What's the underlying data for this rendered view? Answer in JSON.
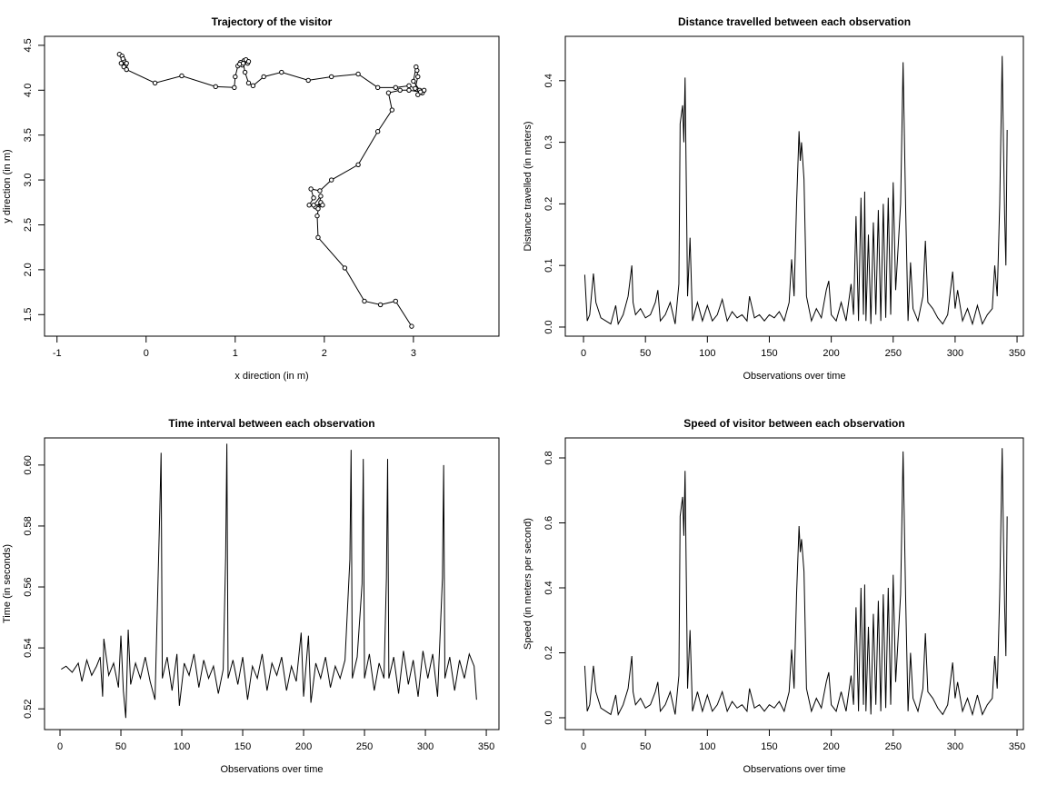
{
  "chart_data": [
    {
      "type": "line",
      "markers": true,
      "title": "Trajectory of the visitor",
      "xlabel": "x direction (in m)",
      "ylabel": "y direction (in m)",
      "color": "#000000",
      "x": [
        -0.3,
        -0.27,
        -0.25,
        -0.28,
        -0.23,
        -0.26,
        -0.22,
        -0.25,
        -0.22,
        0.1,
        0.4,
        0.78,
        0.99,
        1.0,
        1.03,
        1.06,
        1.1,
        1.14,
        1.08,
        1.12,
        1.05,
        1.15,
        1.09,
        1.11,
        1.15,
        1.2,
        1.32,
        1.52,
        1.82,
        2.08,
        2.38,
        2.6,
        2.8,
        2.95,
        3.02,
        3.05,
        3.04,
        3.03,
        3.0,
        3.07,
        3.1,
        3.05,
        3.12,
        3.08,
        2.95,
        2.85,
        2.72,
        2.76,
        2.6,
        2.38,
        2.08,
        1.95,
        1.85,
        1.88,
        1.83,
        1.9,
        1.96,
        1.93,
        1.98,
        1.88,
        1.96,
        1.92,
        1.93,
        2.23,
        2.45,
        2.63,
        2.8,
        2.98
      ],
      "values": [
        4.4,
        4.38,
        4.33,
        4.3,
        4.28,
        4.35,
        4.3,
        4.26,
        4.23,
        4.08,
        4.16,
        4.04,
        4.03,
        4.15,
        4.27,
        4.31,
        4.33,
        4.3,
        4.28,
        4.34,
        4.29,
        4.32,
        4.3,
        4.2,
        4.08,
        4.05,
        4.15,
        4.2,
        4.11,
        4.15,
        4.18,
        4.03,
        4.03,
        4.05,
        4.02,
        4.15,
        4.22,
        4.26,
        4.1,
        4.0,
        3.97,
        3.95,
        4.0,
        3.98,
        4.0,
        4.0,
        3.97,
        3.78,
        3.54,
        3.17,
        3.0,
        2.88,
        2.9,
        2.8,
        2.72,
        2.7,
        2.75,
        2.68,
        2.72,
        2.72,
        2.82,
        2.6,
        2.36,
        2.02,
        1.65,
        1.61,
        1.65,
        1.37
      ],
      "xlim": [
        -1.14,
        3.96
      ],
      "xticks": [
        -1,
        0,
        1,
        2,
        3
      ],
      "ylim": [
        1.26,
        4.6
      ],
      "yticks": [
        1.5,
        {
          "value": 2,
          "label": "2.0"
        },
        2.5,
        {
          "value": 3,
          "label": "3.0"
        },
        3.5,
        {
          "value": 4,
          "label": "4.0"
        },
        4.5
      ]
    },
    {
      "type": "line",
      "title": "Distance travelled between each observation",
      "xlabel": "Observations over time",
      "ylabel": "Distance travelled (in meters)",
      "color": "#000000",
      "x": [
        1,
        3,
        5,
        8,
        10,
        14,
        18,
        22,
        26,
        28,
        32,
        36,
        39,
        40,
        42,
        46,
        50,
        54,
        58,
        60,
        62,
        66,
        70,
        74,
        77,
        78,
        80,
        81,
        82,
        84,
        86,
        88,
        92,
        96,
        100,
        104,
        108,
        112,
        116,
        120,
        124,
        128,
        132,
        134,
        138,
        142,
        146,
        150,
        154,
        158,
        162,
        166,
        168,
        170,
        172,
        174,
        175,
        176,
        178,
        180,
        184,
        188,
        192,
        196,
        198,
        200,
        204,
        208,
        212,
        216,
        218,
        220,
        222,
        224,
        226,
        227,
        228,
        230,
        232,
        234,
        236,
        238,
        240,
        242,
        244,
        246,
        248,
        250,
        252,
        256,
        258,
        260,
        262,
        264,
        266,
        270,
        274,
        276,
        278,
        282,
        286,
        290,
        294,
        298,
        300,
        302,
        306,
        310,
        314,
        318,
        322,
        326,
        330,
        332,
        334,
        336,
        338,
        339,
        340,
        341,
        342
      ],
      "values": [
        0.085,
        0.01,
        0.02,
        0.087,
        0.04,
        0.015,
        0.01,
        0.005,
        0.035,
        0.005,
        0.02,
        0.05,
        0.1,
        0.04,
        0.02,
        0.03,
        0.015,
        0.02,
        0.04,
        0.06,
        0.01,
        0.02,
        0.04,
        0.005,
        0.07,
        0.33,
        0.36,
        0.3,
        0.405,
        0.05,
        0.145,
        0.01,
        0.04,
        0.01,
        0.035,
        0.01,
        0.02,
        0.045,
        0.01,
        0.025,
        0.015,
        0.02,
        0.01,
        0.05,
        0.015,
        0.02,
        0.01,
        0.02,
        0.015,
        0.025,
        0.01,
        0.04,
        0.11,
        0.05,
        0.2,
        0.318,
        0.27,
        0.3,
        0.24,
        0.05,
        0.01,
        0.03,
        0.015,
        0.06,
        0.075,
        0.02,
        0.01,
        0.04,
        0.01,
        0.07,
        0.02,
        0.18,
        0.01,
        0.21,
        0.02,
        0.22,
        0.01,
        0.15,
        0.005,
        0.17,
        0.02,
        0.19,
        0.01,
        0.2,
        0.015,
        0.21,
        0.02,
        0.235,
        0.06,
        0.2,
        0.43,
        0.2,
        0.01,
        0.105,
        0.03,
        0.01,
        0.05,
        0.14,
        0.04,
        0.03,
        0.015,
        0.005,
        0.02,
        0.09,
        0.03,
        0.06,
        0.01,
        0.03,
        0.005,
        0.035,
        0.005,
        0.02,
        0.03,
        0.1,
        0.05,
        0.2,
        0.44,
        0.3,
        0.18,
        0.1,
        0.32
      ],
      "xlim": [
        -14.7,
        355.1
      ],
      "xticks": [
        0,
        50,
        100,
        150,
        200,
        250,
        300,
        350
      ],
      "ylim": [
        -0.0148,
        0.472
      ],
      "yticks": [
        {
          "value": 0,
          "label": "0.0"
        },
        0.1,
        0.2,
        0.3,
        0.4
      ]
    },
    {
      "type": "line",
      "title": "Time interval between each observation",
      "xlabel": "Observations over time",
      "ylabel": "Time (in seconds)",
      "color": "#000000",
      "x": [
        1,
        5,
        10,
        15,
        18,
        22,
        26,
        30,
        33,
        35,
        36,
        40,
        44,
        48,
        50,
        52,
        54,
        56,
        58,
        62,
        66,
        70,
        74,
        78,
        82,
        83,
        84,
        88,
        92,
        96,
        98,
        102,
        106,
        110,
        114,
        118,
        122,
        126,
        130,
        134,
        136,
        137,
        138,
        142,
        146,
        150,
        154,
        158,
        162,
        166,
        170,
        174,
        178,
        182,
        186,
        190,
        194,
        198,
        200,
        204,
        206,
        210,
        214,
        218,
        222,
        226,
        230,
        234,
        238,
        239,
        240,
        244,
        248,
        249,
        250,
        254,
        258,
        262,
        266,
        268,
        269,
        270,
        274,
        278,
        282,
        286,
        290,
        294,
        298,
        302,
        306,
        310,
        314,
        315,
        316,
        320,
        324,
        328,
        332,
        336,
        340,
        342
      ],
      "values": [
        0.533,
        0.534,
        0.532,
        0.535,
        0.529,
        0.536,
        0.531,
        0.534,
        0.537,
        0.524,
        0.543,
        0.531,
        0.535,
        0.527,
        0.544,
        0.526,
        0.517,
        0.546,
        0.528,
        0.535,
        0.53,
        0.537,
        0.529,
        0.523,
        0.586,
        0.604,
        0.53,
        0.537,
        0.526,
        0.538,
        0.521,
        0.535,
        0.531,
        0.538,
        0.527,
        0.536,
        0.53,
        0.534,
        0.525,
        0.533,
        0.57,
        0.607,
        0.53,
        0.536,
        0.528,
        0.537,
        0.523,
        0.534,
        0.53,
        0.538,
        0.526,
        0.535,
        0.531,
        0.537,
        0.526,
        0.534,
        0.529,
        0.545,
        0.524,
        0.544,
        0.522,
        0.535,
        0.53,
        0.537,
        0.527,
        0.534,
        0.53,
        0.536,
        0.569,
        0.605,
        0.53,
        0.537,
        0.561,
        0.602,
        0.53,
        0.538,
        0.526,
        0.535,
        0.53,
        0.563,
        0.602,
        0.53,
        0.537,
        0.525,
        0.539,
        0.528,
        0.536,
        0.524,
        0.539,
        0.53,
        0.538,
        0.524,
        0.563,
        0.6,
        0.53,
        0.537,
        0.526,
        0.536,
        0.53,
        0.538,
        0.534,
        0.523
      ],
      "xlim": [
        -12.7,
        360.4
      ],
      "xticks": [
        0,
        50,
        100,
        150,
        200,
        250,
        300,
        350
      ],
      "ylim": [
        0.5132,
        0.6089
      ],
      "yticks": [
        0.52,
        0.54,
        0.56,
        0.58,
        {
          "value": 0.6,
          "label": "0.60"
        }
      ]
    },
    {
      "type": "line",
      "title": "Speed of visitor between each observation",
      "xlabel": "Observations over time",
      "ylabel": "Speed (in meters per second)",
      "color": "#000000",
      "x": [
        1,
        3,
        5,
        8,
        10,
        14,
        18,
        22,
        26,
        28,
        32,
        36,
        39,
        40,
        42,
        46,
        50,
        54,
        58,
        60,
        62,
        66,
        70,
        74,
        77,
        78,
        80,
        81,
        82,
        84,
        86,
        88,
        92,
        96,
        100,
        104,
        108,
        112,
        116,
        120,
        124,
        128,
        132,
        134,
        138,
        142,
        146,
        150,
        154,
        158,
        162,
        166,
        168,
        170,
        172,
        174,
        175,
        176,
        178,
        180,
        184,
        188,
        192,
        196,
        198,
        200,
        204,
        208,
        212,
        216,
        218,
        220,
        222,
        224,
        226,
        227,
        228,
        230,
        232,
        234,
        236,
        238,
        240,
        242,
        244,
        246,
        248,
        250,
        252,
        256,
        258,
        260,
        262,
        264,
        266,
        270,
        274,
        276,
        278,
        282,
        286,
        290,
        294,
        298,
        300,
        302,
        306,
        310,
        314,
        318,
        322,
        326,
        330,
        332,
        334,
        336,
        338,
        339,
        340,
        341,
        342
      ],
      "values": [
        0.16,
        0.02,
        0.04,
        0.16,
        0.08,
        0.03,
        0.02,
        0.01,
        0.07,
        0.01,
        0.04,
        0.09,
        0.19,
        0.08,
        0.04,
        0.06,
        0.03,
        0.04,
        0.08,
        0.11,
        0.02,
        0.04,
        0.08,
        0.01,
        0.13,
        0.62,
        0.68,
        0.56,
        0.76,
        0.09,
        0.27,
        0.02,
        0.08,
        0.02,
        0.07,
        0.02,
        0.04,
        0.08,
        0.02,
        0.05,
        0.03,
        0.04,
        0.02,
        0.09,
        0.03,
        0.04,
        0.02,
        0.04,
        0.03,
        0.05,
        0.02,
        0.08,
        0.21,
        0.09,
        0.38,
        0.59,
        0.51,
        0.55,
        0.45,
        0.09,
        0.02,
        0.06,
        0.03,
        0.11,
        0.14,
        0.04,
        0.02,
        0.08,
        0.02,
        0.13,
        0.04,
        0.34,
        0.02,
        0.4,
        0.04,
        0.41,
        0.02,
        0.28,
        0.01,
        0.32,
        0.04,
        0.36,
        0.02,
        0.38,
        0.03,
        0.4,
        0.04,
        0.44,
        0.11,
        0.38,
        0.82,
        0.38,
        0.02,
        0.2,
        0.06,
        0.02,
        0.09,
        0.26,
        0.08,
        0.06,
        0.03,
        0.01,
        0.04,
        0.17,
        0.06,
        0.11,
        0.02,
        0.06,
        0.01,
        0.07,
        0.01,
        0.04,
        0.06,
        0.19,
        0.09,
        0.38,
        0.83,
        0.56,
        0.34,
        0.19,
        0.62
      ],
      "xlim": [
        -14.7,
        355.1
      ],
      "xticks": [
        0,
        50,
        100,
        150,
        200,
        250,
        300,
        350
      ],
      "ylim": [
        -0.0364,
        0.8615
      ],
      "yticks": [
        {
          "value": 0,
          "label": "0.0"
        },
        0.2,
        0.4,
        0.6,
        0.8
      ]
    }
  ]
}
